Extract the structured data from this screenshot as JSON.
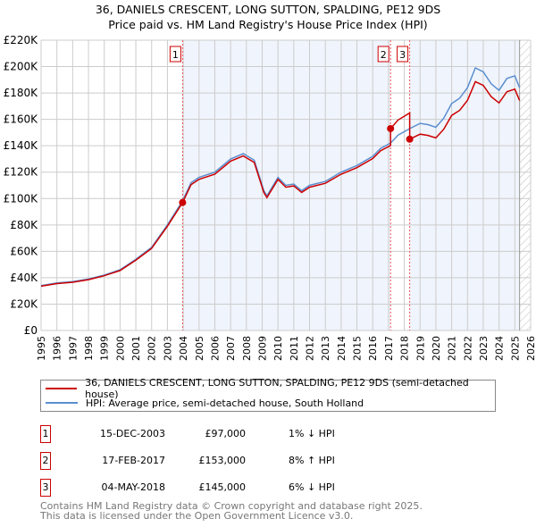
{
  "title_line1": "36, DANIELS CRESCENT, LONG SUTTON, SPALDING, PE12 9DS",
  "title_line2": "Price paid vs. HM Land Registry's House Price Index (HPI)",
  "chart_data": {
    "type": "line",
    "xlim": [
      1995,
      2026
    ],
    "ylim": [
      0,
      220000
    ],
    "x_ticks": [
      1995,
      1996,
      1997,
      1998,
      1999,
      2000,
      2001,
      2002,
      2003,
      2004,
      2005,
      2006,
      2007,
      2008,
      2009,
      2010,
      2011,
      2012,
      2013,
      2014,
      2015,
      2016,
      2017,
      2018,
      2019,
      2020,
      2021,
      2022,
      2023,
      2024,
      2025,
      2026
    ],
    "y_ticks": [
      0,
      20000,
      40000,
      60000,
      80000,
      100000,
      120000,
      140000,
      160000,
      180000,
      200000,
      220000
    ],
    "y_tick_labels": [
      "£0",
      "£20K",
      "£40K",
      "£60K",
      "£80K",
      "£100K",
      "£120K",
      "£140K",
      "£160K",
      "£180K",
      "£200K",
      "£220K"
    ],
    "hpi_series": {
      "name": "HPI: Average price, semi-detached house, South Holland",
      "color": "#5b8fd0",
      "x": [
        1995,
        1996,
        1997,
        1998,
        1999,
        2000,
        2001,
        2002,
        2003,
        2003.95,
        2004.5,
        2005,
        2006,
        2007,
        2007.8,
        2008.5,
        2009.1,
        2009.3,
        2010,
        2010.5,
        2011,
        2011.5,
        2012,
        2013,
        2014,
        2015,
        2016,
        2016.5,
        2017.13,
        2017.6,
        2018.34,
        2019,
        2019.5,
        2020,
        2020.5,
        2021,
        2021.5,
        2022,
        2022.5,
        2023,
        2023.5,
        2024,
        2024.5,
        2025,
        2025.3
      ],
      "y": [
        34000,
        36000,
        37000,
        39000,
        42000,
        46000,
        54000,
        63000,
        80000,
        98000,
        112000,
        116000,
        120000,
        130000,
        134000,
        129000,
        106000,
        102000,
        116000,
        110000,
        111000,
        106000,
        110000,
        113000,
        120000,
        125000,
        132000,
        138000,
        142000,
        148000,
        153000,
        157000,
        156000,
        154000,
        161000,
        172000,
        176000,
        184000,
        199000,
        196000,
        187000,
        182000,
        191000,
        193000,
        184000
      ]
    },
    "price_series": {
      "name": "36, DANIELS CRESCENT, LONG SUTTON, SPALDING, PE12 9DS (semi-detached house)",
      "color": "#cc0000"
    },
    "sales": [
      {
        "id": "1",
        "x": 2003.96,
        "price": 97000,
        "date": "15-DEC-2003",
        "price_label": "£97,000",
        "hpi": "1% ↓ HPI"
      },
      {
        "id": "2",
        "x": 2017.13,
        "price": 153000,
        "date": "17-FEB-2017",
        "price_label": "£153,000",
        "hpi": "8% ↑ HPI"
      },
      {
        "id": "3",
        "x": 2018.34,
        "price": 145000,
        "date": "04-MAY-2018",
        "price_label": "£145,000",
        "hpi": "6% ↓ HPI"
      }
    ],
    "forecast_from": 2025.3
  },
  "footer_line1": "Contains HM Land Registry data © Crown copyright and database right 2025.",
  "footer_line2": "This data is licensed under the Open Government Licence v3.0."
}
